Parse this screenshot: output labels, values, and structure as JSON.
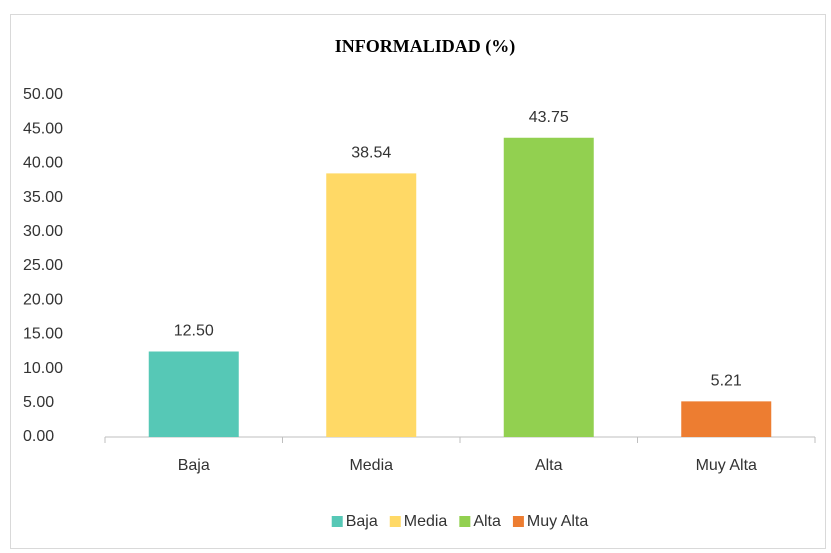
{
  "chart_data": {
    "type": "bar",
    "title": "INFORMALIDAD (%)",
    "categories": [
      "Baja",
      "Media",
      "Alta",
      "Muy Alta"
    ],
    "values": [
      12.5,
      38.54,
      43.75,
      5.21
    ],
    "value_labels": [
      "12.50",
      "38.54",
      "43.75",
      "5.21"
    ],
    "colors": [
      "#56C8B6",
      "#FFD966",
      "#92D050",
      "#ED7D31"
    ],
    "ylim": [
      0,
      50
    ],
    "yticks": [
      {
        "value": 0,
        "label": "0.00"
      },
      {
        "value": 5,
        "label": "5.00"
      },
      {
        "value": 10,
        "label": "10.00"
      },
      {
        "value": 15,
        "label": "15.00"
      },
      {
        "value": 20,
        "label": "20.00"
      },
      {
        "value": 25,
        "label": "25.00"
      },
      {
        "value": 30,
        "label": "30.00"
      },
      {
        "value": 35,
        "label": "35.00"
      },
      {
        "value": 40,
        "label": "40.00"
      },
      {
        "value": 45,
        "label": "45.00"
      },
      {
        "value": 50,
        "label": "50.00"
      }
    ],
    "grid": false,
    "legend": "bottom"
  }
}
